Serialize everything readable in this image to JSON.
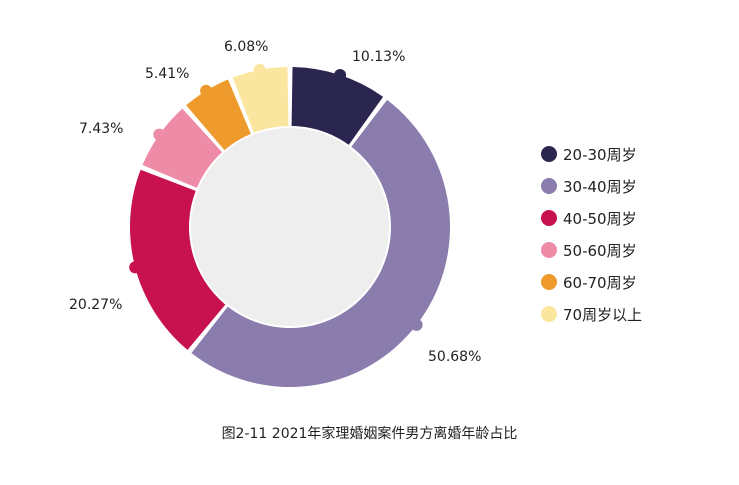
{
  "chart_data": {
    "type": "pie",
    "title": "图2-11  2021年家理婚姻案件男方离婚年龄占比",
    "categories": [
      "20-30周岁",
      "30-40周岁",
      "40-50周岁",
      "50-60周岁",
      "60-70周岁",
      "70周岁以上"
    ],
    "values": [
      10.13,
      50.68,
      20.27,
      7.43,
      5.41,
      6.08
    ],
    "value_labels": [
      "10.13%",
      "50.68%",
      "20.27%",
      "7.43%",
      "5.41%",
      "6.08%"
    ],
    "colors": [
      "#2b2650",
      "#8b7cae",
      "#c8114f",
      "#ee8ca7",
      "#ee9a2d",
      "#fbe6a0"
    ],
    "center_color": "#eeeeee",
    "legend_position": "right"
  }
}
